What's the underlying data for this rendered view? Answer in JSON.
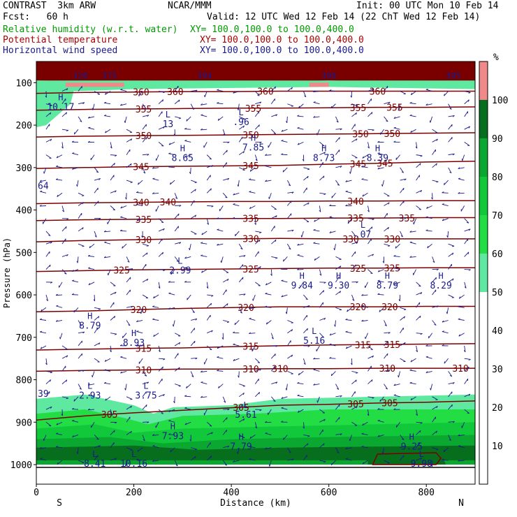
{
  "header": {
    "model": "CONTRAST  3km ARW",
    "org": "NCAR/MMM",
    "init": "Init: 00 UTC Mon 10 Feb 14",
    "fcst": "Fcst:   60 h",
    "valid": "Valid: 12 UTC Wed 12 Feb 14 (22 ChT Wed 12 Feb 14)"
  },
  "legend_rows": [
    {
      "name": "Relative humidity (w.r.t. water)",
      "xy": "XY= 100.0,100.0 to 100.0,400.0",
      "color": "#009900"
    },
    {
      "name": "Potential temperature",
      "xy": "XY= 100.0,100.0 to 100.0,400.0",
      "color": "#aa0000"
    },
    {
      "name": "Horizontal wind speed",
      "xy": "XY= 100.0,100.0 to 100.0,400.0",
      "color": "#1a1a8c"
    }
  ],
  "chart_data": {
    "type": "heatmap",
    "xlabel": "Distance (km)",
    "ylabel": "Pressure (hPa)",
    "xlim": [
      0,
      900
    ],
    "ylim": [
      1000,
      50
    ],
    "x_ticks": [
      0,
      200,
      400,
      600,
      800
    ],
    "x_tick_labels": [
      "0",
      "200",
      "400",
      "600",
      "800"
    ],
    "y_ticks": [
      100,
      200,
      300,
      400,
      500,
      600,
      700,
      800,
      900,
      1000
    ],
    "y_tick_labels": [
      "100",
      "200",
      "300",
      "400",
      "500",
      "600",
      "700",
      "800",
      "900",
      "1000"
    ],
    "x_end_labels": {
      "left": "S",
      "right": "N"
    },
    "colorbar": {
      "unit": "%",
      "ticks": [
        10,
        20,
        30,
        40,
        50,
        60,
        70,
        80,
        90,
        100
      ],
      "tick_labels": [
        "10",
        "20",
        "30",
        "40",
        "50",
        "60",
        "70",
        "80",
        "90",
        "100"
      ],
      "bands": [
        {
          "from": 50,
          "to": 60,
          "color": "#5ee8a0"
        },
        {
          "from": 60,
          "to": 70,
          "color": "#22dd44"
        },
        {
          "from": 70,
          "to": 80,
          "color": "#11c83a"
        },
        {
          "from": 80,
          "to": 90,
          "color": "#0aa830"
        },
        {
          "from": 90,
          "to": 100,
          "color": "#066e1c"
        },
        {
          "from": 100,
          "to": 110,
          "color": "#f08a8a"
        }
      ]
    },
    "theta_contours": [
      {
        "value": 305,
        "p": [
          895,
          885,
          878,
          872,
          866,
          860,
          858,
          855,
          853,
          850
        ],
        "labels": [
          {
            "x": 150,
            "text": "305"
          },
          {
            "x": 420,
            "text": "305"
          },
          {
            "x": 655,
            "text": "305"
          },
          {
            "x": 725,
            "text": "305"
          }
        ]
      },
      {
        "value": 310,
        "p": [
          780,
          778,
          777,
          775,
          775,
          774,
          774,
          773,
          773,
          773
        ],
        "labels": [
          {
            "x": 220,
            "text": "310"
          },
          {
            "x": 440,
            "text": "310"
          },
          {
            "x": 500,
            "text": "310"
          },
          {
            "x": 720,
            "text": "310"
          },
          {
            "x": 870,
            "text": "310"
          }
        ]
      },
      {
        "value": 315,
        "p": [
          730,
          728,
          726,
          725,
          722,
          720,
          718,
          717,
          716,
          715
        ],
        "labels": [
          {
            "x": 220,
            "text": "315"
          },
          {
            "x": 440,
            "text": "315"
          },
          {
            "x": 670,
            "text": "315"
          },
          {
            "x": 730,
            "text": "315"
          }
        ]
      },
      {
        "value": 320,
        "p": [
          640,
          638,
          635,
          632,
          630,
          628,
          628,
          628,
          627,
          627
        ],
        "labels": [
          {
            "x": 210,
            "text": "320"
          },
          {
            "x": 430,
            "text": "320"
          },
          {
            "x": 660,
            "text": "320"
          },
          {
            "x": 725,
            "text": "320"
          }
        ]
      },
      {
        "value": 325,
        "p": [
          545,
          543,
          541,
          540,
          539,
          538,
          537,
          537,
          536,
          536
        ],
        "labels": [
          {
            "x": 175,
            "text": "325"
          },
          {
            "x": 440,
            "text": "325"
          },
          {
            "x": 660,
            "text": "325"
          },
          {
            "x": 730,
            "text": "325"
          }
        ]
      },
      {
        "value": 330,
        "p": [
          475,
          472,
          470,
          468,
          468,
          467,
          468,
          468,
          468,
          468
        ],
        "labels": [
          {
            "x": 220,
            "text": "330"
          },
          {
            "x": 440,
            "text": "330"
          },
          {
            "x": 645,
            "text": "330"
          },
          {
            "x": 730,
            "text": "330"
          }
        ]
      },
      {
        "value": 335,
        "p": [
          425,
          423,
          422,
          421,
          420,
          420,
          419,
          419,
          418,
          418
        ],
        "labels": [
          {
            "x": 220,
            "text": "335"
          },
          {
            "x": 440,
            "text": "335"
          },
          {
            "x": 655,
            "text": "335"
          },
          {
            "x": 760,
            "text": "335"
          }
        ]
      },
      {
        "value": 340,
        "p": [
          385,
          383,
          382,
          381,
          380,
          380,
          379,
          379,
          378,
          378
        ],
        "labels": [
          {
            "x": 215,
            "text": "340"
          },
          {
            "x": 270,
            "text": "340"
          },
          {
            "x": 655,
            "text": "340"
          }
        ]
      },
      {
        "value": 345,
        "p": [
          302,
          300,
          298,
          297,
          296,
          295,
          292,
          290,
          287,
          285
        ],
        "labels": [
          {
            "x": 215,
            "text": "345"
          },
          {
            "x": 440,
            "text": "345"
          },
          {
            "x": 660,
            "text": "345"
          },
          {
            "x": 715,
            "text": "345"
          }
        ]
      },
      {
        "value": 350,
        "p": [
          228,
          226,
          225,
          224,
          223,
          222,
          221,
          220,
          219,
          218
        ],
        "labels": [
          {
            "x": 220,
            "text": "350"
          },
          {
            "x": 440,
            "text": "350"
          },
          {
            "x": 665,
            "text": "350"
          },
          {
            "x": 730,
            "text": "350"
          }
        ]
      },
      {
        "value": 355,
        "p": [
          165,
          163,
          162,
          161,
          160,
          160,
          159,
          158,
          158,
          157
        ],
        "labels": [
          {
            "x": 220,
            "text": "355"
          },
          {
            "x": 445,
            "text": "355"
          },
          {
            "x": 660,
            "text": "355"
          },
          {
            "x": 735,
            "text": "355"
          }
        ]
      },
      {
        "value": 360,
        "p": [
          125,
          123,
          122,
          121,
          121,
          120,
          120,
          120,
          120,
          120
        ],
        "labels": [
          {
            "x": 215,
            "text": "360"
          },
          {
            "x": 285,
            "text": "360"
          },
          {
            "x": 470,
            "text": "360"
          },
          {
            "x": 700,
            "text": "360"
          }
        ]
      }
    ],
    "extrema": [
      {
        "kind": "H",
        "value": "10.17",
        "x": 50,
        "p": 145
      },
      {
        "kind": "L",
        "value": "13",
        "x": 270,
        "p": 185
      },
      {
        "kind": "L",
        "value": ".96",
        "x": 420,
        "p": 180
      },
      {
        "kind": "H",
        "value": "8.65",
        "x": 300,
        "p": 265
      },
      {
        "kind": "H",
        "value": "7.85",
        "x": 445,
        "p": 240
      },
      {
        "kind": "H",
        "value": "8.73",
        "x": 590,
        "p": 265
      },
      {
        "kind": "H",
        "value": "8.39",
        "x": 700,
        "p": 265
      },
      {
        "kind": "L",
        "value": ".07",
        "x": 670,
        "p": 445
      },
      {
        "kind": "L",
        "value": "2.99",
        "x": 295,
        "p": 530
      },
      {
        "kind": "H",
        "value": "9.84",
        "x": 545,
        "p": 565
      },
      {
        "kind": "H",
        "value": "9.30",
        "x": 620,
        "p": 565
      },
      {
        "kind": "H",
        "value": "8.79",
        "x": 720,
        "p": 565
      },
      {
        "kind": "H",
        "value": "8.29",
        "x": 830,
        "p": 565
      },
      {
        "kind": "H",
        "value": "8.79",
        "x": 110,
        "p": 660
      },
      {
        "kind": "H",
        "value": "8.93",
        "x": 200,
        "p": 700
      },
      {
        "kind": "L",
        "value": "5.16",
        "x": 570,
        "p": 695
      },
      {
        "kind": "L",
        "value": "2.93",
        "x": 110,
        "p": 825
      },
      {
        "kind": "L",
        "value": "3.75",
        "x": 225,
        "p": 825
      },
      {
        "kind": "L",
        "value": "5.61",
        "x": 430,
        "p": 870
      },
      {
        "kind": "H",
        "value": "7.93",
        "x": 280,
        "p": 920
      },
      {
        "kind": "H",
        "value": "7.79",
        "x": 420,
        "p": 945
      },
      {
        "kind": "H",
        "value": "9.25",
        "x": 770,
        "p": 945
      },
      {
        "kind": "L",
        "value": "8.41",
        "x": 120,
        "p": 985
      },
      {
        "kind": "L",
        "value": "10.16",
        "x": 200,
        "p": 985
      },
      {
        "kind": "L",
        "value": "9.98",
        "x": 790,
        "p": 985
      }
    ],
    "edge_labels": [
      {
        "text": "64",
        "x": 5,
        "p": 342
      },
      {
        "text": "39",
        "x": 5,
        "p": 832
      }
    ],
    "top_values": [
      {
        "text": "320",
        "x": 90,
        "p": 82
      },
      {
        "text": "375",
        "x": 150,
        "p": 82
      },
      {
        "text": "394",
        "x": 345,
        "p": 82
      },
      {
        "text": "390",
        "x": 600,
        "p": 82
      },
      {
        "text": "395",
        "x": 855,
        "p": 82
      }
    ]
  }
}
